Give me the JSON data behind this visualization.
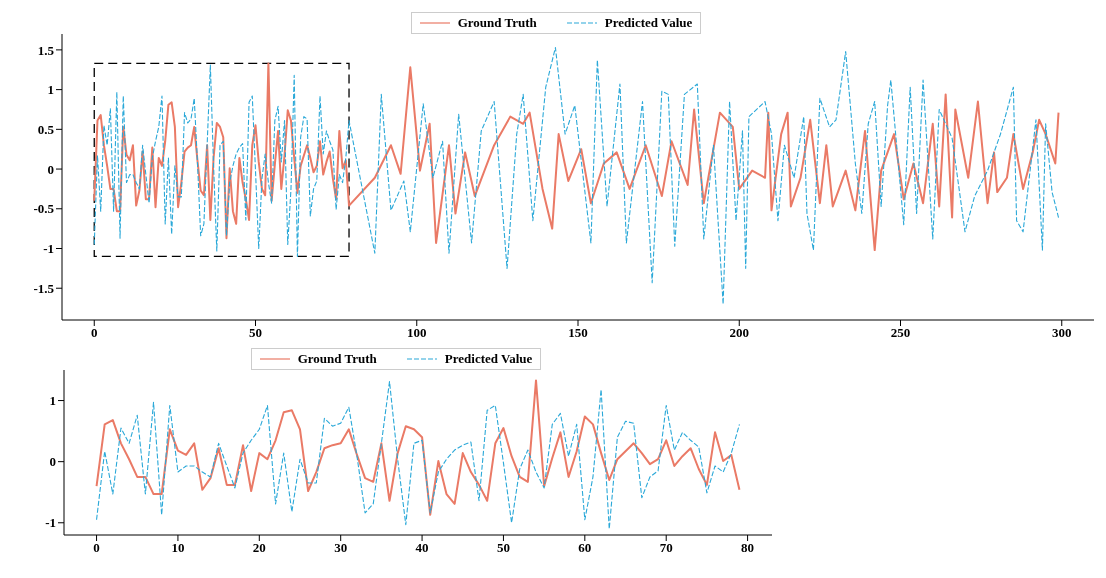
{
  "chart_data": [
    {
      "type": "line",
      "legend": "top",
      "marker": "none",
      "xlim": [
        -10,
        310
      ],
      "xticks": [
        0,
        50,
        100,
        150,
        200,
        250,
        300
      ],
      "ylim": [
        -1.9,
        1.7
      ],
      "yticks": [
        -1.5,
        -1.0,
        -0.5,
        0.0,
        0.5,
        1.0,
        1.5
      ],
      "series": [
        {
          "name": "Ground Truth",
          "color": "#ea7a66",
          "line_style": "solid",
          "x": [
            0,
            1,
            2,
            3,
            4,
            5,
            6,
            7,
            8,
            9,
            10,
            11,
            12,
            13,
            14,
            15,
            16,
            17,
            18,
            19,
            20,
            21,
            22,
            23,
            24,
            25,
            26,
            27,
            28,
            29,
            30,
            31,
            32,
            33,
            34,
            35,
            36,
            37,
            38,
            39,
            40,
            41,
            42,
            43,
            44,
            45,
            46,
            47,
            48,
            49,
            50,
            51,
            52,
            53,
            54,
            55,
            56,
            57,
            58,
            59,
            60,
            61,
            62,
            63,
            64,
            65,
            66,
            67,
            68,
            69,
            70,
            71,
            72,
            73,
            74,
            75,
            76,
            77,
            78,
            79,
            87,
            92,
            95,
            98,
            101,
            104,
            106,
            110,
            112,
            115,
            118,
            124,
            129,
            133,
            135,
            139,
            142,
            144,
            147,
            151,
            154,
            158,
            162,
            166,
            171,
            176,
            179,
            184,
            186,
            189,
            194,
            198,
            200,
            204,
            208,
            209,
            210,
            213,
            215,
            216,
            219,
            222,
            225,
            227,
            229,
            233,
            236,
            239,
            242,
            244,
            248,
            251,
            254,
            257,
            260,
            262,
            264,
            266,
            267,
            271,
            274,
            277,
            279,
            280,
            283,
            285,
            288,
            291,
            293,
            295,
            298,
            299
          ],
          "values": [
            -0.4,
            0.61,
            0.68,
            0.3,
            0.04,
            -0.25,
            -0.25,
            -0.53,
            -0.53,
            0.53,
            0.18,
            0.11,
            0.3,
            -0.46,
            -0.27,
            0.22,
            -0.38,
            -0.38,
            0.27,
            -0.48,
            0.14,
            0.04,
            0.35,
            0.81,
            0.84,
            0.53,
            -0.48,
            -0.17,
            0.22,
            0.27,
            0.3,
            0.53,
            0.11,
            -0.27,
            -0.33,
            0.3,
            -0.64,
            0.14,
            0.58,
            0.53,
            0.4,
            -0.87,
            0.01,
            -0.53,
            -0.69,
            0.14,
            -0.17,
            -0.38,
            -0.64,
            0.3,
            0.55,
            0.09,
            -0.25,
            -0.33,
            1.33,
            -0.4,
            0.06,
            0.48,
            -0.25,
            0.17,
            0.74,
            0.61,
            0.14,
            -0.3,
            0.04,
            0.17,
            0.3,
            0.14,
            -0.04,
            0.04,
            0.35,
            -0.07,
            0.09,
            0.22,
            -0.12,
            -0.38,
            0.48,
            0.01,
            0.11,
            -0.46,
            -0.11,
            0.3,
            -0.06,
            1.28,
            -0.02,
            0.57,
            -0.93,
            0.3,
            -0.56,
            0.21,
            -0.34,
            0.3,
            0.66,
            0.57,
            0.71,
            -0.25,
            -0.75,
            0.44,
            -0.15,
            0.25,
            -0.43,
            0.07,
            0.21,
            -0.25,
            0.3,
            -0.34,
            0.35,
            -0.2,
            0.75,
            -0.43,
            0.71,
            0.53,
            -0.25,
            -0.02,
            -0.11,
            0.71,
            -0.52,
            0.44,
            0.71,
            -0.47,
            -0.11,
            0.62,
            -0.43,
            0.3,
            -0.47,
            -0.02,
            -0.52,
            0.48,
            -1.02,
            -0.02,
            0.44,
            -0.38,
            0.07,
            -0.43,
            0.57,
            -0.47,
            0.94,
            -0.61,
            0.75,
            -0.11,
            0.85,
            -0.43,
            0.21,
            -0.29,
            -0.11,
            0.44,
            -0.25,
            0.21,
            0.62,
            0.44,
            0.07,
            0.71
          ]
        },
        {
          "name": "Predicted Value",
          "color": "#2aa8d8",
          "line_style": "dashed",
          "x": [
            0,
            1,
            2,
            3,
            4,
            5,
            6,
            7,
            8,
            9,
            10,
            11,
            12,
            13,
            14,
            15,
            16,
            17,
            18,
            19,
            20,
            21,
            22,
            23,
            24,
            25,
            26,
            27,
            28,
            29,
            30,
            31,
            32,
            33,
            34,
            35,
            36,
            37,
            38,
            39,
            40,
            41,
            42,
            43,
            44,
            45,
            46,
            47,
            48,
            49,
            50,
            51,
            52,
            53,
            54,
            55,
            56,
            57,
            58,
            59,
            60,
            61,
            62,
            63,
            64,
            65,
            66,
            67,
            68,
            69,
            70,
            71,
            72,
            73,
            74,
            75,
            76,
            77,
            78,
            79,
            87,
            89,
            92,
            96,
            98,
            102,
            105,
            108,
            110,
            113,
            117,
            120,
            124,
            128,
            131,
            133,
            136,
            140,
            143,
            146,
            149,
            154,
            156,
            159,
            163,
            165,
            170,
            173,
            176,
            178,
            180,
            183,
            187,
            189,
            192,
            195,
            197,
            199,
            201,
            202,
            203,
            208,
            210,
            212,
            214,
            217,
            220,
            221,
            223,
            225,
            228,
            230,
            233,
            236,
            238,
            240,
            242,
            244,
            246,
            247,
            251,
            253,
            255,
            257,
            260,
            262,
            266,
            270,
            273,
            277,
            281,
            285,
            286,
            288,
            292,
            294,
            295,
            297,
            299
          ],
          "values": [
            -0.95,
            0.17,
            -0.53,
            0.55,
            0.3,
            0.76,
            -0.53,
            0.97,
            -0.87,
            0.92,
            -0.17,
            -0.07,
            -0.07,
            -0.17,
            -0.25,
            0.3,
            -0.07,
            -0.43,
            0.14,
            0.35,
            0.53,
            0.92,
            -0.69,
            0.14,
            -0.82,
            0.04,
            -0.35,
            -0.35,
            0.71,
            0.58,
            0.63,
            0.89,
            0.09,
            -0.84,
            -0.69,
            0.3,
            1.31,
            0.04,
            -1.03,
            0.3,
            0.35,
            -0.84,
            -0.17,
            0.04,
            0.19,
            0.27,
            0.32,
            -0.64,
            0.84,
            0.92,
            -0.02,
            -1.0,
            -0.12,
            0.19,
            -0.17,
            -0.43,
            0.61,
            0.79,
            0.09,
            0.61,
            -0.95,
            -0.25,
            1.18,
            -1.1,
            0.4,
            0.66,
            0.63,
            -0.59,
            -0.25,
            -0.15,
            0.92,
            0.19,
            0.48,
            0.35,
            0.24,
            -0.51,
            -0.07,
            -0.17,
            0.14,
            0.61,
            -1.06,
            0.94,
            -0.52,
            -0.15,
            -0.79,
            0.82,
            -0.11,
            0.35,
            -1.06,
            0.69,
            -0.93,
            0.48,
            0.85,
            -1.25,
            0.44,
            0.94,
            -0.65,
            1.03,
            1.53,
            0.44,
            0.8,
            -0.93,
            1.37,
            -0.47,
            1.07,
            -0.93,
            0.85,
            -1.43,
            0.98,
            0.94,
            -0.97,
            0.94,
            1.07,
            -0.88,
            0.3,
            -1.7,
            0.85,
            -0.65,
            0.48,
            -1.25,
            0.66,
            0.85,
            0.44,
            -0.65,
            0.3,
            -0.11,
            0.66,
            -0.56,
            -1.02,
            0.89,
            0.53,
            0.62,
            1.48,
            0.07,
            -0.56,
            0.57,
            0.85,
            -0.47,
            0.8,
            1.12,
            -0.7,
            1.03,
            -0.56,
            1.12,
            -0.88,
            0.75,
            0.39,
            -0.79,
            -0.34,
            -0.02,
            0.44,
            1.03,
            -0.65,
            -0.79,
            0.62,
            -1.02,
            0.57,
            -0.29,
            -0.61
          ]
        }
      ]
    },
    {
      "type": "line",
      "legend": "top",
      "marker": "none",
      "xlim": [
        -4,
        83
      ],
      "xticks": [
        0,
        10,
        20,
        30,
        40,
        50,
        60,
        70,
        80
      ],
      "ylim": [
        -1.2,
        1.5
      ],
      "yticks": [
        -1,
        0,
        1
      ],
      "series": [
        {
          "name": "Ground Truth",
          "color": "#ea7a66",
          "line_style": "solid",
          "x": [
            0,
            1,
            2,
            3,
            4,
            5,
            6,
            7,
            8,
            9,
            10,
            11,
            12,
            13,
            14,
            15,
            16,
            17,
            18,
            19,
            20,
            21,
            22,
            23,
            24,
            25,
            26,
            27,
            28,
            29,
            30,
            31,
            32,
            33,
            34,
            35,
            36,
            37,
            38,
            39,
            40,
            41,
            42,
            43,
            44,
            45,
            46,
            47,
            48,
            49,
            50,
            51,
            52,
            53,
            54,
            55,
            56,
            57,
            58,
            59,
            60,
            61,
            62,
            63,
            64,
            65,
            66,
            67,
            68,
            69,
            70,
            71,
            72,
            73,
            74,
            75,
            76,
            77,
            78,
            79
          ],
          "values": [
            -0.4,
            0.61,
            0.68,
            0.3,
            0.04,
            -0.25,
            -0.25,
            -0.53,
            -0.53,
            0.53,
            0.18,
            0.11,
            0.3,
            -0.46,
            -0.27,
            0.22,
            -0.38,
            -0.38,
            0.27,
            -0.48,
            0.14,
            0.04,
            0.35,
            0.81,
            0.84,
            0.53,
            -0.48,
            -0.17,
            0.22,
            0.27,
            0.3,
            0.53,
            0.11,
            -0.27,
            -0.33,
            0.3,
            -0.64,
            0.14,
            0.58,
            0.53,
            0.4,
            -0.87,
            0.01,
            -0.53,
            -0.69,
            0.14,
            -0.17,
            -0.38,
            -0.64,
            0.3,
            0.55,
            0.09,
            -0.25,
            -0.33,
            1.33,
            -0.4,
            0.06,
            0.48,
            -0.25,
            0.17,
            0.74,
            0.61,
            0.14,
            -0.3,
            0.04,
            0.17,
            0.3,
            0.14,
            -0.04,
            0.04,
            0.35,
            -0.07,
            0.09,
            0.22,
            -0.12,
            -0.38,
            0.48,
            0.01,
            0.11,
            -0.46
          ]
        },
        {
          "name": "Predicted Value",
          "color": "#2aa8d8",
          "line_style": "dashed",
          "x": [
            0,
            1,
            2,
            3,
            4,
            5,
            6,
            7,
            8,
            9,
            10,
            11,
            12,
            13,
            14,
            15,
            16,
            17,
            18,
            19,
            20,
            21,
            22,
            23,
            24,
            25,
            26,
            27,
            28,
            29,
            30,
            31,
            32,
            33,
            34,
            35,
            36,
            37,
            38,
            39,
            40,
            41,
            42,
            43,
            44,
            45,
            46,
            47,
            48,
            49,
            50,
            51,
            52,
            53,
            54,
            55,
            56,
            57,
            58,
            59,
            60,
            61,
            62,
            63,
            64,
            65,
            66,
            67,
            68,
            69,
            70,
            71,
            72,
            73,
            74,
            75,
            76,
            77,
            78,
            79
          ],
          "values": [
            -0.95,
            0.17,
            -0.53,
            0.55,
            0.3,
            0.76,
            -0.53,
            0.97,
            -0.87,
            0.92,
            -0.17,
            -0.07,
            -0.07,
            -0.17,
            -0.25,
            0.3,
            -0.07,
            -0.43,
            0.14,
            0.35,
            0.53,
            0.92,
            -0.69,
            0.14,
            -0.82,
            0.04,
            -0.35,
            -0.35,
            0.71,
            0.58,
            0.63,
            0.89,
            0.09,
            -0.84,
            -0.69,
            0.3,
            1.31,
            0.04,
            -1.03,
            0.3,
            0.35,
            -0.84,
            -0.17,
            0.04,
            0.19,
            0.27,
            0.32,
            -0.64,
            0.84,
            0.92,
            -0.02,
            -1.0,
            -0.12,
            0.19,
            -0.17,
            -0.43,
            0.61,
            0.79,
            0.09,
            0.61,
            -0.95,
            -0.25,
            1.18,
            -1.1,
            0.4,
            0.66,
            0.63,
            -0.59,
            -0.25,
            -0.15,
            0.92,
            0.19,
            0.48,
            0.35,
            0.24,
            -0.51,
            -0.07,
            -0.17,
            0.14,
            0.61
          ]
        }
      ]
    }
  ]
}
